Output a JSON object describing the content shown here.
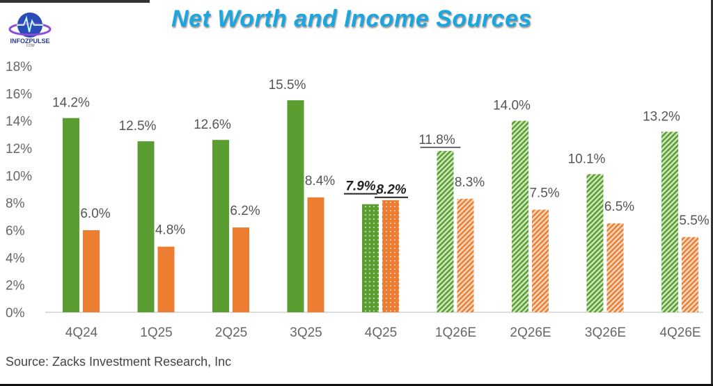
{
  "header": {
    "title": "Net Worth and Income Sources",
    "logo_text": "INFOZPULSE",
    "logo_sub": ".COM"
  },
  "source": "Source: Zacks Investment Research, Inc",
  "chart_data": {
    "type": "bar",
    "title": "",
    "xlabel": "",
    "ylabel": "",
    "ylim": [
      0,
      18
    ],
    "yticks": [
      "0%",
      "2%",
      "4%",
      "6%",
      "8%",
      "10%",
      "12%",
      "14%",
      "16%",
      "18%"
    ],
    "grid": false,
    "categories": [
      "4Q24",
      "1Q25",
      "2Q25",
      "3Q25",
      "4Q25",
      "1Q26E",
      "2Q26E",
      "3Q26E",
      "4Q26E"
    ],
    "series": [
      {
        "color": "#5a9e32",
        "values": [
          14.2,
          12.5,
          12.6,
          15.5,
          7.9,
          11.8,
          14.0,
          10.1,
          13.2
        ],
        "labels": [
          "14.2%",
          "12.5%",
          "12.6%",
          "15.5%",
          "7.9%",
          "11.8%",
          "14.0%",
          "10.1%",
          "13.2%"
        ]
      },
      {
        "color": "#ed7d31",
        "values": [
          6.0,
          4.8,
          6.2,
          8.4,
          8.2,
          8.3,
          7.5,
          6.5,
          5.5
        ],
        "labels": [
          "6.0%",
          "4.8%",
          "6.2%",
          "8.4%",
          "8.2%",
          "8.3%",
          "7.5%",
          "6.5%",
          "5.5%"
        ]
      }
    ],
    "patterns": [
      "solid",
      "solid",
      "solid",
      "solid",
      "dotted",
      "hatched",
      "hatched",
      "hatched",
      "hatched"
    ]
  }
}
